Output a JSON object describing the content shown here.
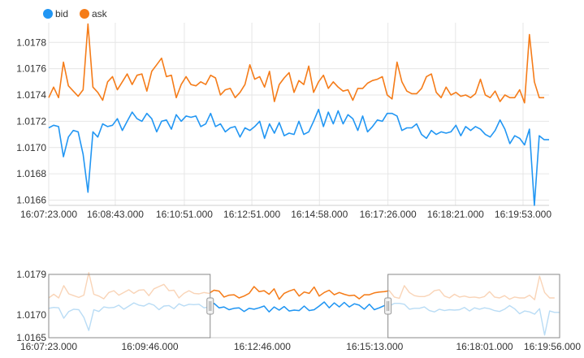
{
  "chart_data": [
    {
      "type": "line",
      "role": "main",
      "legend": [
        {
          "name": "bid",
          "color": "#2196f3"
        },
        {
          "name": "ask",
          "color": "#f57c19"
        }
      ],
      "legend_position": "top-left",
      "ylim": [
        1.01656,
        1.01795
      ],
      "yticks": [
        "1.0178",
        "1.0176",
        "1.0174",
        "1.0172",
        "1.0170",
        "1.0168",
        "1.0166"
      ],
      "ytick_values": [
        1.0178,
        1.0176,
        1.0174,
        1.0172,
        1.017,
        1.0168,
        1.0166
      ],
      "xticks": [
        "16:07:23.000",
        "16:08:43.000",
        "16:10:51.000",
        "16:12:51.000",
        "16:14:58.000",
        "16:17:26.000",
        "16:18:21.000",
        "16:19:53.000"
      ],
      "xtick_positions": [
        0,
        0.133,
        0.271,
        0.406,
        0.541,
        0.678,
        0.813,
        0.948
      ],
      "grid": true,
      "series": [
        {
          "name": "bid",
          "color": "#2196f3",
          "values": [
            1.01715,
            1.01717,
            1.01716,
            1.01693,
            1.01708,
            1.01713,
            1.01712,
            1.01695,
            1.01666,
            1.01712,
            1.01708,
            1.01718,
            1.01716,
            1.01717,
            1.01722,
            1.01713,
            1.0172,
            1.01727,
            1.01722,
            1.0172,
            1.01726,
            1.01722,
            1.01712,
            1.0172,
            1.01721,
            1.01714,
            1.01725,
            1.0172,
            1.01724,
            1.01723,
            1.01724,
            1.01716,
            1.01718,
            1.01726,
            1.01716,
            1.01718,
            1.01712,
            1.01715,
            1.01716,
            1.01708,
            1.01715,
            1.01713,
            1.01716,
            1.0172,
            1.01707,
            1.01718,
            1.01711,
            1.01719,
            1.01709,
            1.01711,
            1.0171,
            1.0172,
            1.0171,
            1.01712,
            1.0172,
            1.01729,
            1.01716,
            1.01727,
            1.01718,
            1.01728,
            1.01718,
            1.01725,
            1.01722,
            1.01713,
            1.01724,
            1.01712,
            1.01716,
            1.01721,
            1.0172,
            1.01726,
            1.01726,
            1.01724,
            1.01713,
            1.01715,
            1.01715,
            1.01718,
            1.0171,
            1.01707,
            1.01713,
            1.0171,
            1.01712,
            1.01711,
            1.01712,
            1.01717,
            1.01709,
            1.01716,
            1.01713,
            1.01716,
            1.01714,
            1.0171,
            1.01708,
            1.01713,
            1.01721,
            1.01714,
            1.01703,
            1.01709,
            1.01707,
            1.01702,
            1.01714,
            1.01656,
            1.01709,
            1.01706,
            1.01706
          ]
        },
        {
          "name": "ask",
          "color": "#f57c19",
          "values": [
            1.01738,
            1.01746,
            1.01738,
            1.01765,
            1.01747,
            1.01743,
            1.01739,
            1.01744,
            1.01794,
            1.01746,
            1.01742,
            1.01736,
            1.0175,
            1.01754,
            1.01744,
            1.0175,
            1.01756,
            1.01748,
            1.01755,
            1.01756,
            1.01743,
            1.01758,
            1.01763,
            1.01768,
            1.01754,
            1.01755,
            1.01738,
            1.01748,
            1.01754,
            1.01748,
            1.01747,
            1.0175,
            1.01748,
            1.01755,
            1.01753,
            1.0174,
            1.01744,
            1.01745,
            1.01738,
            1.01742,
            1.01748,
            1.01763,
            1.01752,
            1.01754,
            1.01746,
            1.01758,
            1.01735,
            1.01748,
            1.01753,
            1.01757,
            1.01742,
            1.01751,
            1.01748,
            1.01762,
            1.01742,
            1.0175,
            1.01755,
            1.01745,
            1.0175,
            1.01746,
            1.01743,
            1.01744,
            1.01736,
            1.01745,
            1.01745,
            1.01749,
            1.01751,
            1.01752,
            1.01754,
            1.0174,
            1.01737,
            1.01765,
            1.0175,
            1.01743,
            1.01741,
            1.01741,
            1.01745,
            1.01754,
            1.01756,
            1.01742,
            1.01738,
            1.01746,
            1.0174,
            1.01742,
            1.01739,
            1.0174,
            1.01738,
            1.01741,
            1.01752,
            1.0174,
            1.01738,
            1.01743,
            1.01735,
            1.0174,
            1.01738,
            1.01738,
            1.01744,
            1.01734,
            1.01786,
            1.0175,
            1.01738,
            1.01738
          ]
        }
      ]
    },
    {
      "type": "line",
      "role": "navigator",
      "ylim": [
        1.0165,
        1.0179
      ],
      "yticks": [
        "1.0179",
        "1.0170",
        "1.0165"
      ],
      "ytick_values": [
        1.0179,
        1.017,
        1.0165
      ],
      "xticks": [
        "16:07:23.000",
        "16:09:46.000",
        "16:12:46.000",
        "16:15:13.000",
        "16:18:01.000",
        "16:19:56.000"
      ],
      "xtick_positions": [
        0,
        0.198,
        0.418,
        0.638,
        0.853,
        1.0
      ],
      "selection_range": [
        0.316,
        0.664
      ],
      "faded_colors": {
        "bid": "#b9dcf5",
        "ask": "#f9d4b7"
      }
    }
  ]
}
